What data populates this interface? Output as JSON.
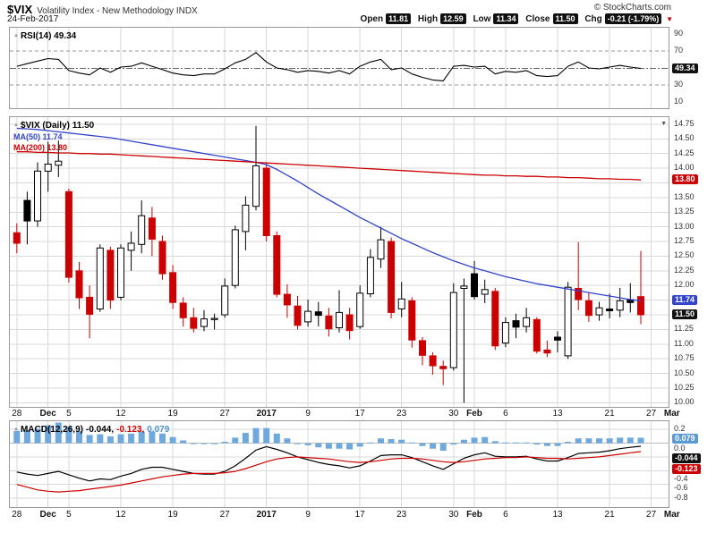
{
  "header": {
    "symbol": "$VIX",
    "title": "Volatility Index - New Methodology INDX",
    "date": "24-Feb-2017",
    "credit": "© StockCharts.com",
    "quote": {
      "open_label": "Open",
      "open_value": "11.81",
      "high_label": "High",
      "high_value": "12.59",
      "low_label": "Low",
      "low_value": "11.34",
      "close_label": "Close",
      "close_value": "11.50",
      "chg_label": "Chg",
      "chg_value": "-0.21 (-1.79%)"
    }
  },
  "panels": {
    "rsi": {
      "label": "RSI(14) 49.34"
    },
    "price": {
      "label": "$VIX (Daily) 11.50",
      "ma50_label": "MA(50) 11.74",
      "ma200_label": "MA(200) 13.80"
    },
    "macd": {
      "label": "MACD(12,26,9)",
      "macd_value": "-0.044,",
      "signal_value": "-0.123,",
      "hist_value": "0.079"
    }
  },
  "colors": {
    "down": "#cc0000",
    "ma50": "#3344cc",
    "ma200": "#cc0000",
    "histogram": "#6fa8dc",
    "macd_line": "#000000",
    "signal_line": "#cc0000",
    "grid": "#d9d9d9"
  },
  "xaxis": {
    "slots": 63,
    "ticks": [
      {
        "i": 0,
        "label": "28"
      },
      {
        "i": 3,
        "label": "Dec",
        "bold": true
      },
      {
        "i": 5,
        "label": "5"
      },
      {
        "i": 10,
        "label": "12"
      },
      {
        "i": 15,
        "label": "19"
      },
      {
        "i": 20,
        "label": "27"
      },
      {
        "i": 24,
        "label": "2017",
        "bold": true
      },
      {
        "i": 28,
        "label": "9"
      },
      {
        "i": 33,
        "label": "17"
      },
      {
        "i": 37,
        "label": "23"
      },
      {
        "i": 42,
        "label": "30"
      },
      {
        "i": 44,
        "label": "Feb",
        "bold": true
      },
      {
        "i": 47,
        "label": "6"
      },
      {
        "i": 52,
        "label": "13"
      },
      {
        "i": 57,
        "label": "21"
      },
      {
        "i": 61,
        "label": "27"
      },
      {
        "i": 63,
        "label": "Mar",
        "bold": true
      }
    ]
  },
  "chart_data": [
    {
      "type": "line",
      "name": "RSI(14)",
      "ylim": [
        3,
        97
      ],
      "yticks": [
        90,
        70,
        30,
        10
      ],
      "overbought": 70,
      "oversold": 30,
      "current": 49.34,
      "values": [
        52,
        55,
        58,
        61,
        60,
        47,
        44,
        42,
        50,
        45,
        51,
        52,
        56,
        52,
        48,
        44,
        42,
        41,
        43,
        43,
        49,
        56,
        60,
        68,
        57,
        50,
        48,
        45,
        47,
        46,
        44,
        47,
        43,
        52,
        57,
        60,
        48,
        50,
        43,
        39,
        36,
        35,
        52,
        53,
        51,
        52,
        43,
        46,
        45,
        47,
        41,
        40,
        41,
        52,
        57,
        50,
        49,
        51,
        53,
        51,
        49.34
      ]
    },
    {
      "type": "candlestick",
      "name": "$VIX Daily",
      "ylim": [
        9.93,
        14.87
      ],
      "ytick_min": 10.0,
      "ytick_max": 14.75,
      "ytick_step": 0.25,
      "hidden_ticks": [
        13.75,
        11.75,
        11.5
      ],
      "axis_chips": [
        {
          "value": 13.8,
          "label": "13.80",
          "color": "red"
        },
        {
          "value": 11.74,
          "label": "11.74",
          "color": "blue"
        },
        {
          "value": 11.5,
          "label": "11.50",
          "color": "black"
        }
      ],
      "dates": [
        "Nov 28",
        "Nov 29",
        "Nov 30",
        "Dec 1",
        "Dec 2",
        "Dec 5",
        "Dec 6",
        "Dec 7",
        "Dec 8",
        "Dec 9",
        "Dec 12",
        "Dec 13",
        "Dec 14",
        "Dec 15",
        "Dec 16",
        "Dec 19",
        "Dec 20",
        "Dec 21",
        "Dec 22",
        "Dec 23",
        "Dec 27",
        "Dec 28",
        "Dec 29",
        "Dec 30",
        "Jan 3",
        "Jan 4",
        "Jan 5",
        "Jan 6",
        "Jan 9",
        "Jan 10",
        "Jan 11",
        "Jan 12",
        "Jan 13",
        "Jan 17",
        "Jan 18",
        "Jan 19",
        "Jan 20",
        "Jan 23",
        "Jan 24",
        "Jan 25",
        "Jan 26",
        "Jan 27",
        "Jan 30",
        "Jan 31",
        "Feb 1",
        "Feb 2",
        "Feb 3",
        "Feb 6",
        "Feb 7",
        "Feb 8",
        "Feb 9",
        "Feb 10",
        "Feb 13",
        "Feb 14",
        "Feb 15",
        "Feb 16",
        "Feb 17",
        "Feb 21",
        "Feb 22",
        "Feb 23",
        "Feb 24"
      ],
      "ohlc": [
        [
          12.9,
          13.06,
          12.55,
          12.72
        ],
        [
          13.45,
          13.6,
          12.7,
          13.1
        ],
        [
          13.1,
          14.1,
          13.0,
          13.95
        ],
        [
          13.95,
          14.45,
          13.6,
          14.07
        ],
        [
          14.05,
          14.47,
          13.85,
          14.12
        ],
        [
          13.6,
          13.65,
          12.05,
          12.14
        ],
        [
          12.25,
          12.4,
          11.6,
          11.79
        ],
        [
          11.8,
          12.0,
          11.1,
          11.51
        ],
        [
          11.6,
          12.7,
          11.55,
          12.64
        ],
        [
          12.6,
          12.66,
          11.6,
          11.75
        ],
        [
          11.8,
          12.7,
          11.75,
          12.64
        ],
        [
          12.6,
          12.92,
          12.25,
          12.72
        ],
        [
          12.7,
          13.45,
          12.55,
          13.19
        ],
        [
          13.15,
          13.34,
          12.5,
          12.79
        ],
        [
          12.75,
          12.85,
          12.1,
          12.2
        ],
        [
          12.22,
          12.35,
          11.6,
          11.71
        ],
        [
          11.7,
          11.8,
          11.3,
          11.45
        ],
        [
          11.45,
          11.62,
          11.2,
          11.27
        ],
        [
          11.3,
          11.58,
          11.22,
          11.43
        ],
        [
          11.42,
          11.52,
          11.25,
          11.44
        ],
        [
          11.5,
          12.12,
          11.45,
          11.99
        ],
        [
          12.0,
          13.02,
          11.95,
          12.95
        ],
        [
          12.92,
          13.52,
          12.6,
          13.37
        ],
        [
          13.35,
          14.72,
          13.28,
          14.04
        ],
        [
          14.0,
          14.08,
          12.75,
          12.85
        ],
        [
          12.85,
          12.92,
          11.8,
          11.85
        ],
        [
          11.85,
          12.02,
          11.45,
          11.67
        ],
        [
          11.65,
          11.82,
          11.25,
          11.32
        ],
        [
          11.38,
          11.76,
          11.3,
          11.56
        ],
        [
          11.55,
          11.72,
          11.3,
          11.49
        ],
        [
          11.48,
          11.62,
          11.13,
          11.26
        ],
        [
          11.28,
          11.92,
          11.2,
          11.54
        ],
        [
          11.5,
          11.62,
          11.08,
          11.23
        ],
        [
          11.3,
          12.0,
          11.26,
          11.87
        ],
        [
          11.86,
          12.62,
          11.8,
          12.48
        ],
        [
          12.45,
          13.0,
          12.3,
          12.78
        ],
        [
          12.75,
          12.82,
          11.44,
          11.54
        ],
        [
          11.6,
          12.06,
          11.46,
          11.77
        ],
        [
          11.74,
          11.8,
          10.94,
          11.07
        ],
        [
          11.06,
          11.12,
          10.64,
          10.81
        ],
        [
          10.8,
          10.86,
          10.48,
          10.63
        ],
        [
          10.62,
          10.72,
          10.3,
          10.58
        ],
        [
          10.6,
          12.04,
          10.55,
          11.88
        ],
        [
          11.95,
          12.12,
          10.0,
          11.99
        ],
        [
          12.2,
          12.42,
          11.76,
          11.81
        ],
        [
          11.85,
          12.1,
          11.7,
          11.93
        ],
        [
          11.9,
          11.96,
          10.9,
          10.97
        ],
        [
          11.02,
          11.46,
          10.95,
          11.37
        ],
        [
          11.4,
          11.52,
          11.1,
          11.29
        ],
        [
          11.3,
          11.62,
          11.2,
          11.45
        ],
        [
          11.42,
          11.46,
          10.84,
          10.88
        ],
        [
          10.9,
          11.06,
          10.78,
          10.85
        ],
        [
          11.12,
          11.22,
          10.86,
          11.07
        ],
        [
          10.8,
          12.06,
          10.75,
          11.97
        ],
        [
          11.95,
          12.74,
          11.58,
          11.76
        ],
        [
          11.74,
          11.88,
          11.38,
          11.49
        ],
        [
          11.5,
          11.72,
          11.4,
          11.62
        ],
        [
          11.6,
          11.86,
          11.44,
          11.57
        ],
        [
          11.58,
          11.96,
          11.46,
          11.74
        ],
        [
          11.76,
          12.04,
          11.54,
          11.71
        ],
        [
          11.81,
          12.59,
          11.34,
          11.5
        ]
      ],
      "candle_colors": [
        "red",
        "black",
        "white",
        "white",
        "white",
        "red",
        "red",
        "red",
        "white",
        "red",
        "white",
        "white",
        "white",
        "red",
        "red",
        "red",
        "red",
        "red",
        "white",
        "white",
        "white",
        "white",
        "white",
        "white",
        "red",
        "red",
        "red",
        "red",
        "white",
        "black",
        "red",
        "white",
        "red",
        "white",
        "white",
        "white",
        "red",
        "white",
        "red",
        "red",
        "red",
        "red",
        "white",
        "white",
        "black",
        "white",
        "red",
        "white",
        "black",
        "white",
        "red",
        "red",
        "black",
        "white",
        "red",
        "red",
        "white",
        "black",
        "white",
        "black",
        "red"
      ],
      "ma50": [
        14.68,
        14.67,
        14.66,
        14.64,
        14.62,
        14.6,
        14.58,
        14.56,
        14.54,
        14.52,
        14.49,
        14.46,
        14.43,
        14.4,
        14.37,
        14.34,
        14.31,
        14.28,
        14.25,
        14.22,
        14.19,
        14.16,
        14.13,
        14.1,
        14.06,
        13.98,
        13.88,
        13.78,
        13.67,
        13.56,
        13.46,
        13.36,
        13.26,
        13.16,
        13.07,
        12.98,
        12.89,
        12.8,
        12.72,
        12.64,
        12.56,
        12.49,
        12.42,
        12.36,
        12.3,
        12.25,
        12.2,
        12.15,
        12.11,
        12.07,
        12.03,
        12.0,
        11.97,
        11.94,
        11.91,
        11.88,
        11.85,
        11.82,
        11.79,
        11.76,
        11.74
      ],
      "ma200": [
        14.28,
        14.28,
        14.27,
        14.27,
        14.26,
        14.26,
        14.25,
        14.25,
        14.24,
        14.24,
        14.23,
        14.22,
        14.21,
        14.2,
        14.19,
        14.18,
        14.17,
        14.16,
        14.15,
        14.14,
        14.13,
        14.12,
        14.11,
        14.1,
        14.09,
        14.08,
        14.07,
        14.06,
        14.05,
        14.04,
        14.03,
        14.02,
        14.01,
        14.0,
        13.99,
        13.98,
        13.97,
        13.96,
        13.95,
        13.94,
        13.93,
        13.92,
        13.91,
        13.9,
        13.89,
        13.88,
        13.88,
        13.87,
        13.87,
        13.86,
        13.86,
        13.85,
        13.85,
        13.84,
        13.84,
        13.83,
        13.82,
        13.82,
        13.81,
        13.81,
        13.8
      ]
    },
    {
      "type": "macd",
      "name": "MACD(12,26,9)",
      "ylim": [
        -0.93,
        0.32
      ],
      "yticks": [
        0.2,
        0.0,
        -0.4,
        -0.6,
        -0.8
      ],
      "grid": [
        0.2,
        0.0,
        -0.2,
        -0.4,
        -0.6,
        -0.8
      ],
      "axis_chips": [
        {
          "value": 0.079,
          "label": "0.079",
          "color": "lightblue"
        },
        {
          "value": -0.044,
          "label": "-0.044",
          "color": "black"
        },
        {
          "value": -0.123,
          "label": "-0.123",
          "color": "red"
        }
      ],
      "histogram": [
        0.18,
        0.19,
        0.21,
        0.26,
        0.3,
        0.24,
        0.18,
        0.12,
        0.13,
        0.1,
        0.13,
        0.14,
        0.17,
        0.17,
        0.14,
        0.09,
        0.04,
        0.0,
        -0.01,
        -0.01,
        0.02,
        0.08,
        0.15,
        0.22,
        0.22,
        0.14,
        0.07,
        0.0,
        -0.03,
        -0.06,
        -0.08,
        -0.08,
        -0.09,
        -0.05,
        0.01,
        0.07,
        0.06,
        0.05,
        0.01,
        -0.04,
        -0.08,
        -0.11,
        -0.02,
        0.05,
        0.08,
        0.09,
        0.03,
        0.01,
        0.01,
        0.01,
        -0.02,
        -0.04,
        -0.04,
        0.02,
        0.07,
        0.07,
        0.07,
        0.07,
        0.08,
        0.08,
        0.079
      ],
      "macd": [
        -0.42,
        -0.45,
        -0.47,
        -0.44,
        -0.41,
        -0.46,
        -0.51,
        -0.55,
        -0.52,
        -0.53,
        -0.48,
        -0.44,
        -0.38,
        -0.35,
        -0.35,
        -0.38,
        -0.41,
        -0.44,
        -0.45,
        -0.45,
        -0.41,
        -0.33,
        -0.22,
        -0.1,
        -0.05,
        -0.09,
        -0.14,
        -0.2,
        -0.24,
        -0.28,
        -0.31,
        -0.33,
        -0.36,
        -0.33,
        -0.26,
        -0.18,
        -0.17,
        -0.17,
        -0.21,
        -0.27,
        -0.33,
        -0.38,
        -0.3,
        -0.22,
        -0.17,
        -0.14,
        -0.19,
        -0.2,
        -0.2,
        -0.19,
        -0.23,
        -0.26,
        -0.26,
        -0.21,
        -0.15,
        -0.14,
        -0.13,
        -0.11,
        -0.08,
        -0.06,
        -0.044
      ],
      "signal": [
        -0.6,
        -0.64,
        -0.68,
        -0.7,
        -0.71,
        -0.7,
        -0.69,
        -0.67,
        -0.65,
        -0.63,
        -0.61,
        -0.58,
        -0.55,
        -0.52,
        -0.49,
        -0.47,
        -0.45,
        -0.44,
        -0.44,
        -0.44,
        -0.43,
        -0.41,
        -0.37,
        -0.32,
        -0.27,
        -0.23,
        -0.21,
        -0.2,
        -0.21,
        -0.22,
        -0.23,
        -0.25,
        -0.27,
        -0.28,
        -0.27,
        -0.25,
        -0.23,
        -0.22,
        -0.22,
        -0.23,
        -0.25,
        -0.27,
        -0.28,
        -0.27,
        -0.25,
        -0.23,
        -0.22,
        -0.21,
        -0.21,
        -0.2,
        -0.21,
        -0.22,
        -0.22,
        -0.23,
        -0.22,
        -0.21,
        -0.2,
        -0.18,
        -0.16,
        -0.14,
        -0.123
      ]
    }
  ]
}
